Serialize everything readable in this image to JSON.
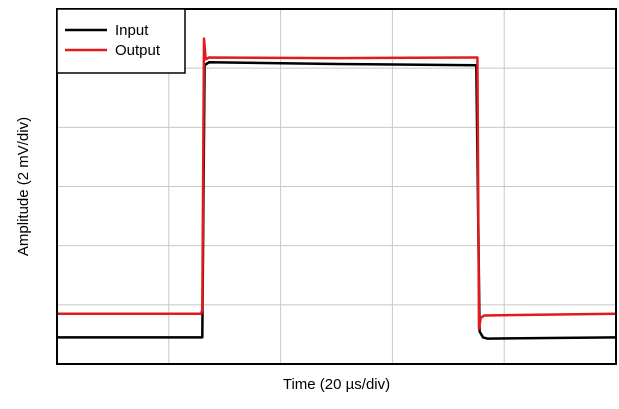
{
  "chart_data": {
    "type": "line",
    "title": "",
    "xlabel": "Time (20 µs/div)",
    "ylabel": "Amplitude (2 mV/div)",
    "xlim": [
      0,
      10
    ],
    "ylim": [
      0,
      6
    ],
    "grid": true,
    "legend_position": "top-left",
    "series": [
      {
        "name": "Input",
        "color": "#000000",
        "x": [
          0,
          2.6,
          2.64,
          2.72,
          5.0,
          7.5,
          7.56,
          7.62,
          7.7,
          10
        ],
        "y": [
          0.45,
          0.45,
          5.05,
          5.1,
          5.07,
          5.05,
          0.55,
          0.45,
          0.43,
          0.45
        ]
      },
      {
        "name": "Output",
        "color": "#e31a1c",
        "x": [
          0,
          2.58,
          2.6,
          2.63,
          2.66,
          2.72,
          5.0,
          7.48,
          7.52,
          7.55,
          7.58,
          7.64,
          10
        ],
        "y": [
          0.85,
          0.85,
          0.92,
          5.5,
          5.15,
          5.18,
          5.17,
          5.18,
          5.18,
          0.6,
          0.78,
          0.82,
          0.85
        ]
      }
    ]
  }
}
